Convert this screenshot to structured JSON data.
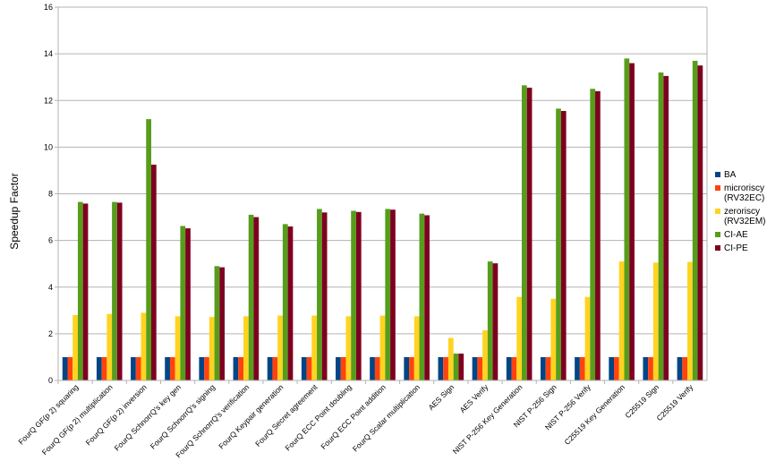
{
  "chart_data": {
    "type": "bar",
    "title": "",
    "xlabel": "",
    "ylabel": "Speedup Factor",
    "ylim": [
      0,
      16
    ],
    "yticks": [
      0,
      2,
      4,
      6,
      8,
      10,
      12,
      14,
      16
    ],
    "grid": true,
    "legend_position": "right",
    "categories": [
      "FourQ GF(p 2) squaring",
      "FourQ GF(p 2) multiplication",
      "FourQ GF(p 2) inversion",
      "FourQ SchnorrQ's key gen",
      "FourQ SchnorrQ's signing",
      "FourQ SchnorrQ's verification",
      "FourQ Keypair generation",
      "FourQ Secret agreement",
      "FourQ ECC Point doubling",
      "FourQ ECC Point addition",
      "FourQ Scalar multiplication",
      "AES Sign",
      "AES Verify",
      "NIST P-256 Key Generation",
      "NIST P-256 Sign",
      "NIST P-256 Verify",
      "C25519 Key Generation",
      "C25519 Sign",
      "C25519 Verify"
    ],
    "series": [
      {
        "name": "BA",
        "legend_lines": [
          "BA"
        ],
        "color": "#004586",
        "values": [
          1,
          1,
          1,
          1,
          1,
          1,
          1,
          1,
          1,
          1,
          1,
          1,
          1,
          1,
          1,
          1,
          1,
          1,
          1
        ]
      },
      {
        "name": "microriscy (RV32EC)",
        "legend_lines": [
          "microriscy",
          "(RV32EC)"
        ],
        "color": "#ff420e",
        "values": [
          1,
          1,
          1,
          1,
          1,
          1,
          1,
          1,
          1,
          1,
          1,
          1,
          1,
          1,
          1,
          1,
          1,
          1,
          1
        ]
      },
      {
        "name": "zeroriscy (RV32EM)",
        "legend_lines": [
          "zeroriscy",
          "(RV32EM)"
        ],
        "color": "#ffd320",
        "values": [
          2.8,
          2.85,
          2.9,
          2.75,
          2.72,
          2.75,
          2.78,
          2.78,
          2.75,
          2.78,
          2.75,
          1.82,
          2.15,
          3.58,
          3.5,
          3.58,
          5.1,
          5.05,
          5.08
        ]
      },
      {
        "name": "CI-AE",
        "legend_lines": [
          "CI-AE"
        ],
        "color": "#579d1c",
        "values": [
          7.65,
          7.65,
          11.2,
          6.62,
          4.9,
          7.1,
          6.7,
          7.35,
          7.27,
          7.35,
          7.15,
          1.15,
          5.1,
          12.65,
          11.65,
          12.5,
          13.8,
          13.2,
          13.7
        ]
      },
      {
        "name": "CI-PE",
        "legend_lines": [
          "CI-PE"
        ],
        "color": "#7e0021",
        "values": [
          7.58,
          7.62,
          9.25,
          6.52,
          4.85,
          7.0,
          6.6,
          7.2,
          7.22,
          7.32,
          7.08,
          1.15,
          5.02,
          12.55,
          11.55,
          12.4,
          13.6,
          13.05,
          13.5
        ]
      }
    ]
  }
}
